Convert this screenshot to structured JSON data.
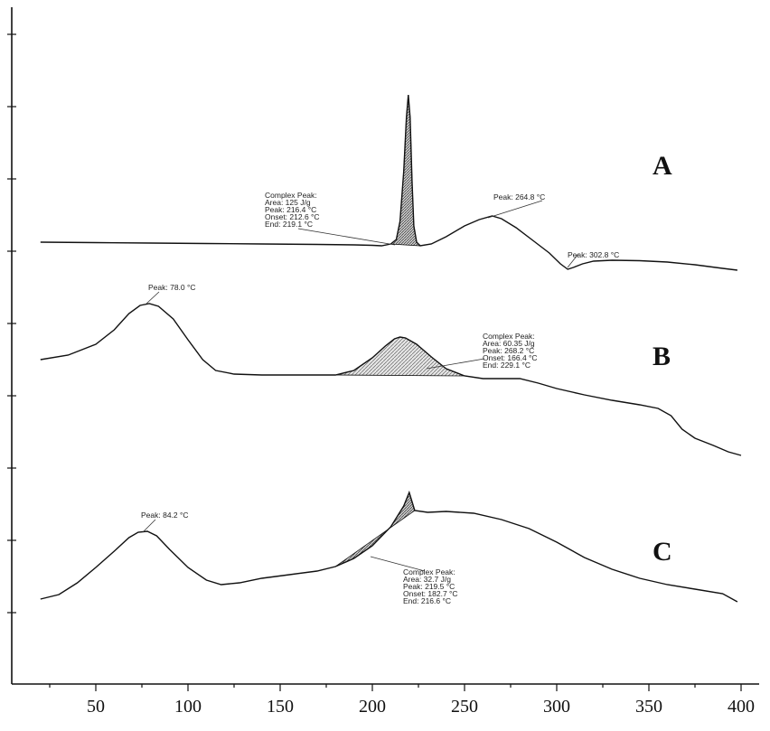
{
  "chart_data": {
    "type": "line",
    "xlim": [
      20,
      400
    ],
    "x_ticks": [
      50,
      100,
      150,
      200,
      250,
      300,
      350,
      400
    ],
    "grid": false,
    "series": [
      {
        "name": "A",
        "points": [
          [
            20,
            268
          ],
          [
            50,
            268.5
          ],
          [
            80,
            269
          ],
          [
            110,
            269.5
          ],
          [
            140,
            270
          ],
          [
            170,
            270.5
          ],
          [
            190,
            271
          ],
          [
            200,
            271.5
          ],
          [
            205,
            272
          ],
          [
            210,
            270
          ],
          [
            213,
            265
          ],
          [
            215,
            245
          ],
          [
            217,
            190
          ],
          [
            218.5,
            130
          ],
          [
            219.5,
            105
          ],
          [
            220.5,
            130
          ],
          [
            221.5,
            200
          ],
          [
            222.5,
            250
          ],
          [
            224,
            268
          ],
          [
            226,
            272
          ],
          [
            232,
            270
          ],
          [
            240,
            262
          ],
          [
            250,
            250
          ],
          [
            258,
            243
          ],
          [
            265,
            239
          ],
          [
            270,
            242
          ],
          [
            278,
            252
          ],
          [
            287,
            266
          ],
          [
            296,
            280
          ],
          [
            302,
            292
          ],
          [
            306,
            298
          ],
          [
            309,
            296
          ],
          [
            314,
            292
          ],
          [
            320,
            289
          ],
          [
            330,
            288
          ],
          [
            345,
            288.5
          ],
          [
            360,
            290
          ],
          [
            375,
            293
          ],
          [
            390,
            297
          ],
          [
            398,
            299
          ]
        ],
        "annotations": [
          {
            "lines": [
              "Complex Peak:",
              "Area:   125 J/g",
              "Peak:  216.4 °C",
              "Onset:  212.6 °C",
              "End:   219.1 °C"
            ]
          },
          {
            "lines": [
              "Peak:  264.8 °C"
            ]
          },
          {
            "lines": [
              "Peak:  302.8 °C"
            ]
          }
        ]
      },
      {
        "name": "B",
        "points": [
          [
            20,
            398
          ],
          [
            35,
            393
          ],
          [
            50,
            381
          ],
          [
            60,
            365
          ],
          [
            68,
            347
          ],
          [
            74,
            338
          ],
          [
            79,
            336
          ],
          [
            84,
            339
          ],
          [
            92,
            353
          ],
          [
            100,
            376
          ],
          [
            108,
            398
          ],
          [
            115,
            410
          ],
          [
            125,
            414
          ],
          [
            140,
            415
          ],
          [
            160,
            415
          ],
          [
            180,
            415
          ],
          [
            190,
            410
          ],
          [
            200,
            396
          ],
          [
            207,
            383
          ],
          [
            212,
            375
          ],
          [
            215,
            373
          ],
          [
            218,
            374
          ],
          [
            224,
            381
          ],
          [
            232,
            395
          ],
          [
            240,
            408
          ],
          [
            250,
            416
          ],
          [
            260,
            419
          ],
          [
            270,
            419
          ],
          [
            280,
            419
          ],
          [
            290,
            424
          ],
          [
            300,
            430
          ],
          [
            315,
            437
          ],
          [
            330,
            443
          ],
          [
            345,
            448
          ],
          [
            355,
            452
          ],
          [
            362,
            460
          ],
          [
            368,
            475
          ],
          [
            375,
            485
          ],
          [
            385,
            493
          ],
          [
            393,
            500
          ],
          [
            400,
            504
          ]
        ],
        "annotations": [
          {
            "lines": [
              "Peak:  78.0 °C"
            ]
          },
          {
            "lines": [
              "Complex Peak:",
              "Area:    60.35 J/g",
              "Peak:   268.2 °C",
              "Onset:   166.4 °C",
              "End:    229.1 °C"
            ]
          }
        ]
      },
      {
        "name": "C",
        "points": [
          [
            20,
            663
          ],
          [
            30,
            658
          ],
          [
            40,
            645
          ],
          [
            50,
            628
          ],
          [
            60,
            610
          ],
          [
            68,
            595
          ],
          [
            73,
            589
          ],
          [
            78,
            588
          ],
          [
            83,
            593
          ],
          [
            90,
            608
          ],
          [
            100,
            628
          ],
          [
            110,
            642
          ],
          [
            118,
            647
          ],
          [
            128,
            645
          ],
          [
            140,
            640
          ],
          [
            155,
            636
          ],
          [
            170,
            632
          ],
          [
            180,
            627
          ],
          [
            190,
            618
          ],
          [
            200,
            604
          ],
          [
            210,
            583
          ],
          [
            217,
            560
          ],
          [
            220,
            545
          ],
          [
            223,
            565
          ],
          [
            230,
            567
          ],
          [
            240,
            566
          ],
          [
            255,
            568
          ],
          [
            270,
            575
          ],
          [
            285,
            585
          ],
          [
            300,
            600
          ],
          [
            315,
            617
          ],
          [
            330,
            630
          ],
          [
            345,
            640
          ],
          [
            360,
            647
          ],
          [
            375,
            652
          ],
          [
            390,
            657
          ],
          [
            398,
            666
          ]
        ],
        "annotations": [
          {
            "lines": [
              "Peak:  84.2 °C"
            ]
          },
          {
            "lines": [
              "Complex Peak:",
              "Area:    32.7 J/g",
              "Peak:   219.5 °C",
              "Onset:   182.7 °C",
              "End:    216.6 °C"
            ]
          }
        ]
      }
    ]
  }
}
